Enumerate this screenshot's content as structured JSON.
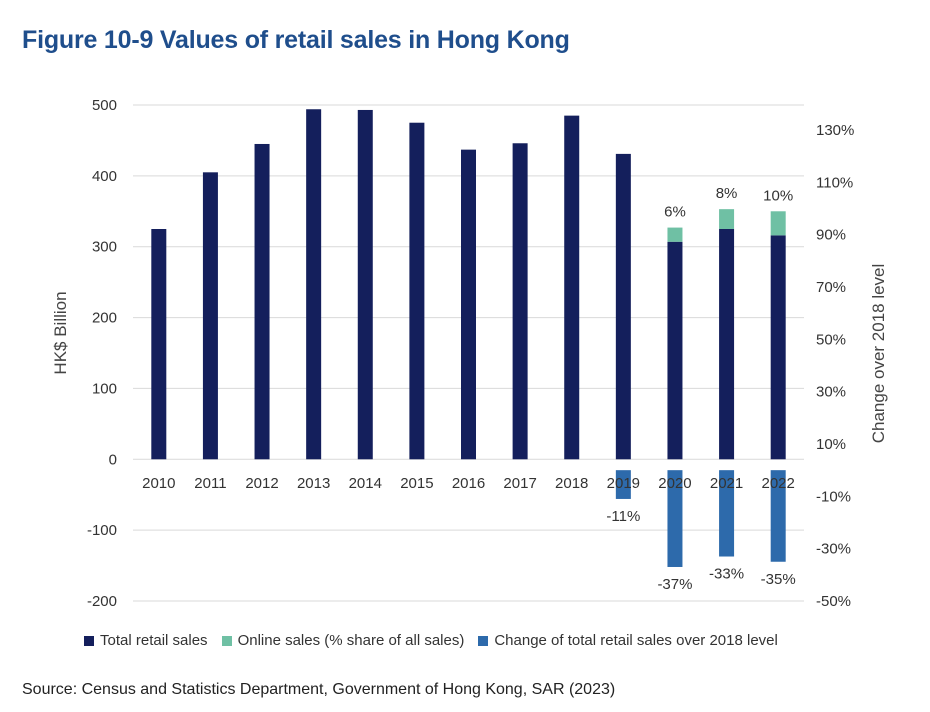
{
  "title": "Figure 10-9 Values of retail sales in Hong Kong",
  "source": "Source: Census and Statistics Department, Government of Hong Kong, SAR (2023)",
  "colors": {
    "total": "#141f5c",
    "online": "#6fc0a4",
    "change": "#2d6aab",
    "grid": "#d9d9d9"
  },
  "chart_data": {
    "type": "bar",
    "categories": [
      "2010",
      "2011",
      "2012",
      "2013",
      "2014",
      "2015",
      "2016",
      "2017",
      "2018",
      "2019",
      "2020",
      "2021",
      "2022"
    ],
    "ylabel": "HK$ Billion",
    "y2label": "Change over 2018 level",
    "ylim": [
      -200,
      500
    ],
    "y_ticks": [
      "500",
      "400",
      "300",
      "200",
      "100",
      "0",
      "-100",
      "-200"
    ],
    "y2lim": [
      -50,
      130
    ],
    "y2_ticks": [
      "130%",
      "110%",
      "90%",
      "70%",
      "50%",
      "30%",
      "10%",
      "-10%",
      "-30%",
      "-50%"
    ],
    "grid": true,
    "legend_position": "bottom",
    "series": [
      {
        "name": "Total retail sales",
        "axis": "left",
        "values": [
          325,
          405,
          445,
          494,
          493,
          475,
          437,
          446,
          485,
          431,
          307,
          325,
          316
        ]
      },
      {
        "name": "Online sales (% share of all sales)",
        "axis": "left",
        "stacked_on": "Total retail sales",
        "values": [
          null,
          null,
          null,
          null,
          null,
          null,
          null,
          null,
          null,
          null,
          20,
          28,
          34
        ],
        "labels": [
          "",
          "",
          "",
          "",
          "",
          "",
          "",
          "",
          "",
          "",
          "6%",
          "8%",
          "10%"
        ]
      },
      {
        "name": "Change of total retail sales over 2018 level",
        "axis": "right",
        "values": [
          null,
          null,
          null,
          null,
          null,
          null,
          null,
          null,
          null,
          -11,
          -37,
          -33,
          -35
        ],
        "labels": [
          "",
          "",
          "",
          "",
          "",
          "",
          "",
          "",
          "",
          "-11%",
          "-37%",
          "-33%",
          "-35%"
        ]
      }
    ]
  }
}
